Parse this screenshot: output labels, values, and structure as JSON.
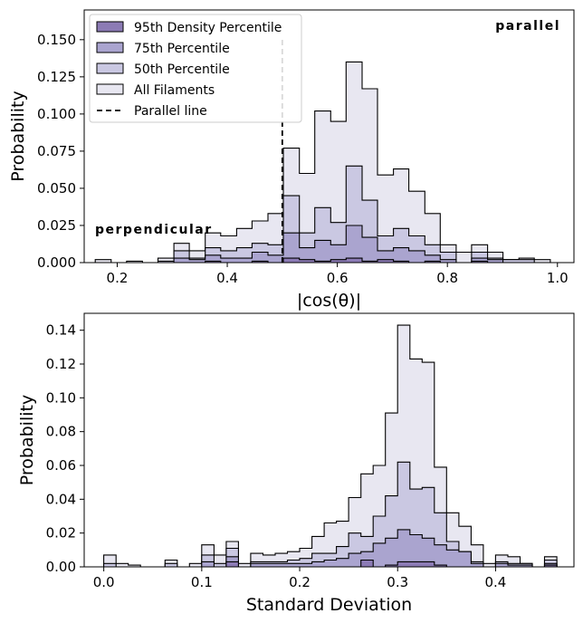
{
  "chart_data": [
    {
      "type": "histogram-step",
      "xlabel": "|cos(θ)|",
      "ylabel": "Probability",
      "xlim": [
        0.14,
        1.03
      ],
      "ylim": [
        0,
        0.17
      ],
      "xticks": [
        {
          "value": 0.2,
          "label": "0.2"
        },
        {
          "value": 0.4,
          "label": "0.4"
        },
        {
          "value": 0.6,
          "label": "0.6"
        },
        {
          "value": 0.8,
          "label": "0.8"
        },
        {
          "value": 1.0,
          "label": "1.0"
        }
      ],
      "yticks": [
        {
          "value": 0.0,
          "label": "0.000"
        },
        {
          "value": 0.025,
          "label": "0.025"
        },
        {
          "value": 0.05,
          "label": "0.050"
        },
        {
          "value": 0.075,
          "label": "0.075"
        },
        {
          "value": 0.1,
          "label": "0.100"
        },
        {
          "value": 0.125,
          "label": "0.125"
        },
        {
          "value": 0.15,
          "label": "0.150"
        }
      ],
      "annotations": [
        {
          "text": "parallel",
          "position": "top-right"
        },
        {
          "text": "perpendicular",
          "position": "left"
        }
      ],
      "vline": {
        "x": 0.5,
        "ymax": 0.15,
        "label": "Parallel line",
        "style": "dashed"
      },
      "legend": {
        "position": "upper-left",
        "entries": [
          {
            "label": "95th Density Percentile",
            "color": "#8c7bb5"
          },
          {
            "label": "75th Percentile",
            "color": "#aaa4cf"
          },
          {
            "label": "50th Percentile",
            "color": "#cac8e2"
          },
          {
            "label": "All Filaments",
            "color": "#e8e7f1"
          },
          {
            "label": "Parallel line",
            "color": "#000000",
            "style": "dashed"
          }
        ]
      },
      "bin_edges": [
        0.16,
        0.189,
        0.217,
        0.246,
        0.274,
        0.303,
        0.331,
        0.36,
        0.388,
        0.417,
        0.445,
        0.474,
        0.502,
        0.531,
        0.559,
        0.588,
        0.616,
        0.645,
        0.673,
        0.702,
        0.73,
        0.759,
        0.787,
        0.816,
        0.844,
        0.873,
        0.901,
        0.93,
        0.958,
        0.987
      ],
      "series": [
        {
          "name": "All Filaments",
          "color": "#e8e7f1",
          "values": [
            0.002,
            0.0,
            0.001,
            0.0,
            0.003,
            0.013,
            0.008,
            0.02,
            0.018,
            0.023,
            0.028,
            0.033,
            0.077,
            0.06,
            0.102,
            0.095,
            0.135,
            0.117,
            0.059,
            0.063,
            0.048,
            0.033,
            0.012,
            0.007,
            0.012,
            0.007,
            0.002,
            0.003,
            0.002
          ]
        },
        {
          "name": "50th Percentile",
          "color": "#cac8e2",
          "values": [
            0.0,
            0.0,
            0.0,
            0.0,
            0.001,
            0.008,
            0.003,
            0.01,
            0.008,
            0.01,
            0.013,
            0.012,
            0.045,
            0.02,
            0.037,
            0.027,
            0.065,
            0.042,
            0.018,
            0.023,
            0.018,
            0.012,
            0.007,
            0.0,
            0.007,
            0.003,
            0.002,
            0.002,
            0.0
          ]
        },
        {
          "name": "75th Percentile",
          "color": "#aaa4cf",
          "values": [
            0.0,
            0.0,
            0.0,
            0.0,
            0.0,
            0.003,
            0.002,
            0.005,
            0.003,
            0.003,
            0.007,
            0.005,
            0.02,
            0.01,
            0.015,
            0.012,
            0.025,
            0.017,
            0.008,
            0.01,
            0.008,
            0.005,
            0.002,
            0.0,
            0.003,
            0.002,
            0.0,
            0.0,
            0.0
          ]
        },
        {
          "name": "95th Density Percentile",
          "color": "#8c7bb5",
          "values": [
            0.0,
            0.0,
            0.0,
            0.0,
            0.0,
            0.0,
            0.0,
            0.001,
            0.0,
            0.0,
            0.001,
            0.0,
            0.003,
            0.002,
            0.001,
            0.002,
            0.003,
            0.001,
            0.002,
            0.001,
            0.0,
            0.001,
            0.0,
            0.0,
            0.001,
            0.0,
            0.0,
            0.0,
            0.0
          ]
        }
      ]
    },
    {
      "type": "histogram-step",
      "xlabel": "Standard Deviation",
      "ylabel": "Probability",
      "xlim": [
        -0.02,
        0.48
      ],
      "ylim": [
        0,
        0.15
      ],
      "xticks": [
        {
          "value": 0.0,
          "label": "0.0"
        },
        {
          "value": 0.1,
          "label": "0.1"
        },
        {
          "value": 0.2,
          "label": "0.2"
        },
        {
          "value": 0.3,
          "label": "0.3"
        },
        {
          "value": 0.4,
          "label": "0.4"
        }
      ],
      "yticks": [
        {
          "value": 0.0,
          "label": "0.00"
        },
        {
          "value": 0.02,
          "label": "0.02"
        },
        {
          "value": 0.04,
          "label": "0.04"
        },
        {
          "value": 0.06,
          "label": "0.06"
        },
        {
          "value": 0.08,
          "label": "0.08"
        },
        {
          "value": 0.1,
          "label": "0.10"
        },
        {
          "value": 0.12,
          "label": "0.12"
        },
        {
          "value": 0.14,
          "label": "0.14"
        }
      ],
      "bin_edges": [
        0.0,
        0.0125,
        0.025,
        0.0375,
        0.05,
        0.0625,
        0.075,
        0.0875,
        0.1,
        0.1125,
        0.125,
        0.1375,
        0.15,
        0.1625,
        0.175,
        0.1875,
        0.2,
        0.2125,
        0.225,
        0.2375,
        0.25,
        0.2625,
        0.275,
        0.2875,
        0.3,
        0.3125,
        0.325,
        0.3375,
        0.35,
        0.3625,
        0.375,
        0.3875,
        0.4,
        0.4125,
        0.425,
        0.4375,
        0.45,
        0.4625
      ],
      "series": [
        {
          "name": "All Filaments",
          "color": "#e8e7f1",
          "values": [
            0.007,
            0.002,
            0.001,
            0.0,
            0.0,
            0.004,
            0.0,
            0.002,
            0.013,
            0.007,
            0.015,
            0.002,
            0.008,
            0.007,
            0.008,
            0.009,
            0.011,
            0.018,
            0.026,
            0.027,
            0.041,
            0.055,
            0.06,
            0.091,
            0.143,
            0.123,
            0.121,
            0.059,
            0.032,
            0.024,
            0.013,
            0.002,
            0.007,
            0.006,
            0.002,
            0.0,
            0.006
          ]
        },
        {
          "name": "50th Percentile",
          "color": "#cac8e2",
          "values": [
            0.002,
            0.0,
            0.0,
            0.0,
            0.0,
            0.002,
            0.0,
            0.0,
            0.007,
            0.002,
            0.011,
            0.0,
            0.003,
            0.003,
            0.003,
            0.004,
            0.005,
            0.008,
            0.008,
            0.012,
            0.02,
            0.018,
            0.03,
            0.042,
            0.062,
            0.046,
            0.047,
            0.032,
            0.015,
            0.009,
            0.003,
            0.0,
            0.003,
            0.002,
            0.002,
            0.0,
            0.004
          ]
        },
        {
          "name": "75th Percentile",
          "color": "#aaa4cf",
          "values": [
            0.0,
            0.0,
            0.0,
            0.0,
            0.0,
            0.0,
            0.0,
            0.0,
            0.003,
            0.0,
            0.006,
            0.0,
            0.002,
            0.002,
            0.002,
            0.002,
            0.002,
            0.003,
            0.004,
            0.005,
            0.008,
            0.009,
            0.014,
            0.017,
            0.022,
            0.019,
            0.017,
            0.013,
            0.01,
            0.009,
            0.002,
            0.0,
            0.002,
            0.001,
            0.001,
            0.0,
            0.002
          ]
        },
        {
          "name": "95th Density Percentile",
          "color": "#8c7bb5",
          "values": [
            0.0,
            0.0,
            0.0,
            0.0,
            0.0,
            0.0,
            0.0,
            0.0,
            0.0,
            0.0,
            0.003,
            0.0,
            0.0,
            0.0,
            0.0,
            0.0,
            0.0,
            0.0,
            0.0,
            0.0,
            0.0,
            0.004,
            0.0,
            0.001,
            0.003,
            0.003,
            0.003,
            0.001,
            0.0,
            0.0,
            0.0,
            0.0,
            0.0,
            0.0,
            0.0,
            0.0,
            0.001
          ]
        }
      ]
    }
  ]
}
